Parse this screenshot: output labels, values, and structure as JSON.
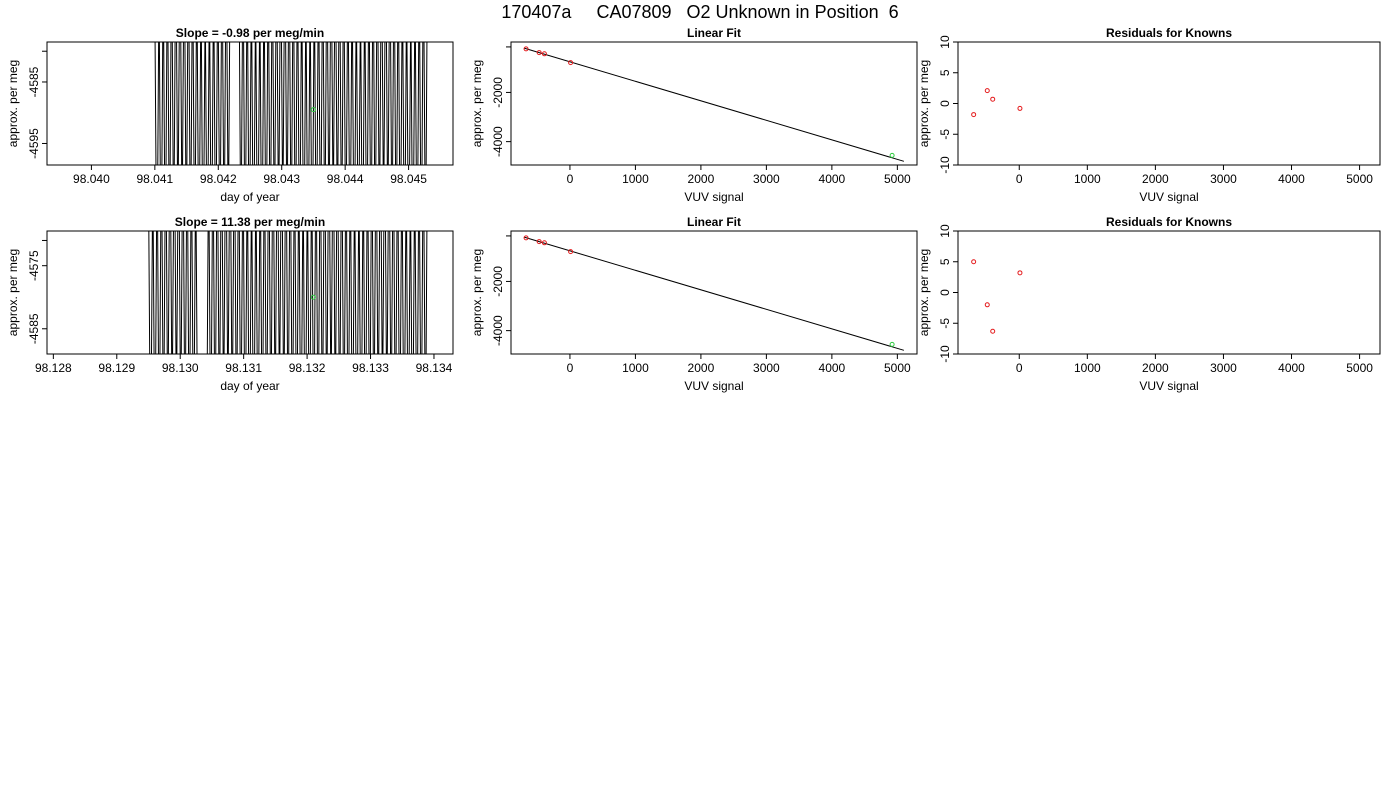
{
  "title": "170407a     CA07809   O2 Unknown in Position  6",
  "colors": {
    "line": "#000000",
    "known_point": "#e41a1c",
    "unknown_point": "#2ecc40"
  },
  "chart_data": [
    {
      "type": "line",
      "title": "Slope =  -0.98  per meg/min",
      "xlabel": "day of year",
      "ylabel": "approx. per meg",
      "xlim": [
        98.0393,
        98.0457
      ],
      "ylim": [
        -4598.5,
        -4578.5
      ],
      "xticks": [
        "98.040",
        "98.041",
        "98.042",
        "98.043",
        "98.044",
        "98.045"
      ],
      "yticks": [
        "-4585",
        "-4595"
      ],
      "signal": {
        "x_start": 98.041,
        "x_end": 98.0453,
        "gap_start": 98.0422,
        "gap_end": 98.0423,
        "amplitude": 30,
        "center": -4590
      },
      "unknown_point": {
        "x": 98.0435,
        "y": -4589.5
      }
    },
    {
      "type": "scatter",
      "title": "Linear Fit",
      "xlabel": "VUV signal",
      "ylabel": "approx. per meg",
      "xlim": [
        -900,
        5300
      ],
      "ylim": [
        -4950,
        50
      ],
      "xticks": [
        "0",
        "1000",
        "2000",
        "3000",
        "4000",
        "5000"
      ],
      "yticks": [
        "-2000",
        "-4000"
      ],
      "known_points": [
        {
          "x": -670,
          "y": -230
        },
        {
          "x": -470,
          "y": -380
        },
        {
          "x": -390,
          "y": -430
        },
        {
          "x": 10,
          "y": -790
        }
      ],
      "unknown_point": {
        "x": 4920,
        "y": -4560
      },
      "fit_line": {
        "x": [
          -700,
          5100
        ],
        "y": [
          -200,
          -4800
        ]
      }
    },
    {
      "type": "scatter",
      "title": "Residuals for Knowns",
      "xlabel": "VUV signal",
      "ylabel": "approx. per meg",
      "xlim": [
        -900,
        5300
      ],
      "ylim": [
        -10,
        10
      ],
      "xticks": [
        "0",
        "1000",
        "2000",
        "3000",
        "4000",
        "5000"
      ],
      "yticks": [
        "10",
        "5",
        "0",
        "-5",
        "-10"
      ],
      "known_points": [
        {
          "x": -670,
          "y": -1.8
        },
        {
          "x": -470,
          "y": 2.1
        },
        {
          "x": -390,
          "y": 0.7
        },
        {
          "x": 10,
          "y": -0.8
        }
      ]
    },
    {
      "type": "line",
      "title": "Slope =  11.38  per meg/min",
      "xlabel": "day of year",
      "ylabel": "approx. per meg",
      "xlim": [
        98.1279,
        98.1343
      ],
      "ylim": [
        -4589,
        -4569.5
      ],
      "xticks": [
        "98.128",
        "98.129",
        "98.130",
        "98.131",
        "98.132",
        "98.133",
        "98.134"
      ],
      "yticks": [
        "-4575",
        "-4585"
      ],
      "signal": {
        "x_start": 98.1295,
        "x_end": 98.1339,
        "gap_start": 98.1303,
        "gap_end": 98.1304,
        "amplitude": 30,
        "center": -4580
      },
      "unknown_point": {
        "x": 98.1321,
        "y": -4580
      }
    },
    {
      "type": "scatter",
      "title": "Linear Fit",
      "xlabel": "VUV signal",
      "ylabel": "approx. per meg",
      "xlim": [
        -900,
        5300
      ],
      "ylim": [
        -4950,
        50
      ],
      "xticks": [
        "0",
        "1000",
        "2000",
        "3000",
        "4000",
        "5000"
      ],
      "yticks": [
        "-2000",
        "-4000"
      ],
      "known_points": [
        {
          "x": -670,
          "y": -230
        },
        {
          "x": -470,
          "y": -380
        },
        {
          "x": -390,
          "y": -430
        },
        {
          "x": 10,
          "y": -790
        }
      ],
      "unknown_point": {
        "x": 4920,
        "y": -4560
      },
      "fit_line": {
        "x": [
          -700,
          5100
        ],
        "y": [
          -200,
          -4800
        ]
      }
    },
    {
      "type": "scatter",
      "title": "Residuals for Knowns",
      "xlabel": "VUV signal",
      "ylabel": "approx. per meg",
      "xlim": [
        -900,
        5300
      ],
      "ylim": [
        -10,
        10
      ],
      "xticks": [
        "0",
        "1000",
        "2000",
        "3000",
        "4000",
        "5000"
      ],
      "yticks": [
        "10",
        "5",
        "0",
        "-5",
        "-10"
      ],
      "known_points": [
        {
          "x": -670,
          "y": 5.0
        },
        {
          "x": -470,
          "y": -2.0
        },
        {
          "x": -390,
          "y": -6.3
        },
        {
          "x": 10,
          "y": 3.2
        }
      ]
    }
  ]
}
